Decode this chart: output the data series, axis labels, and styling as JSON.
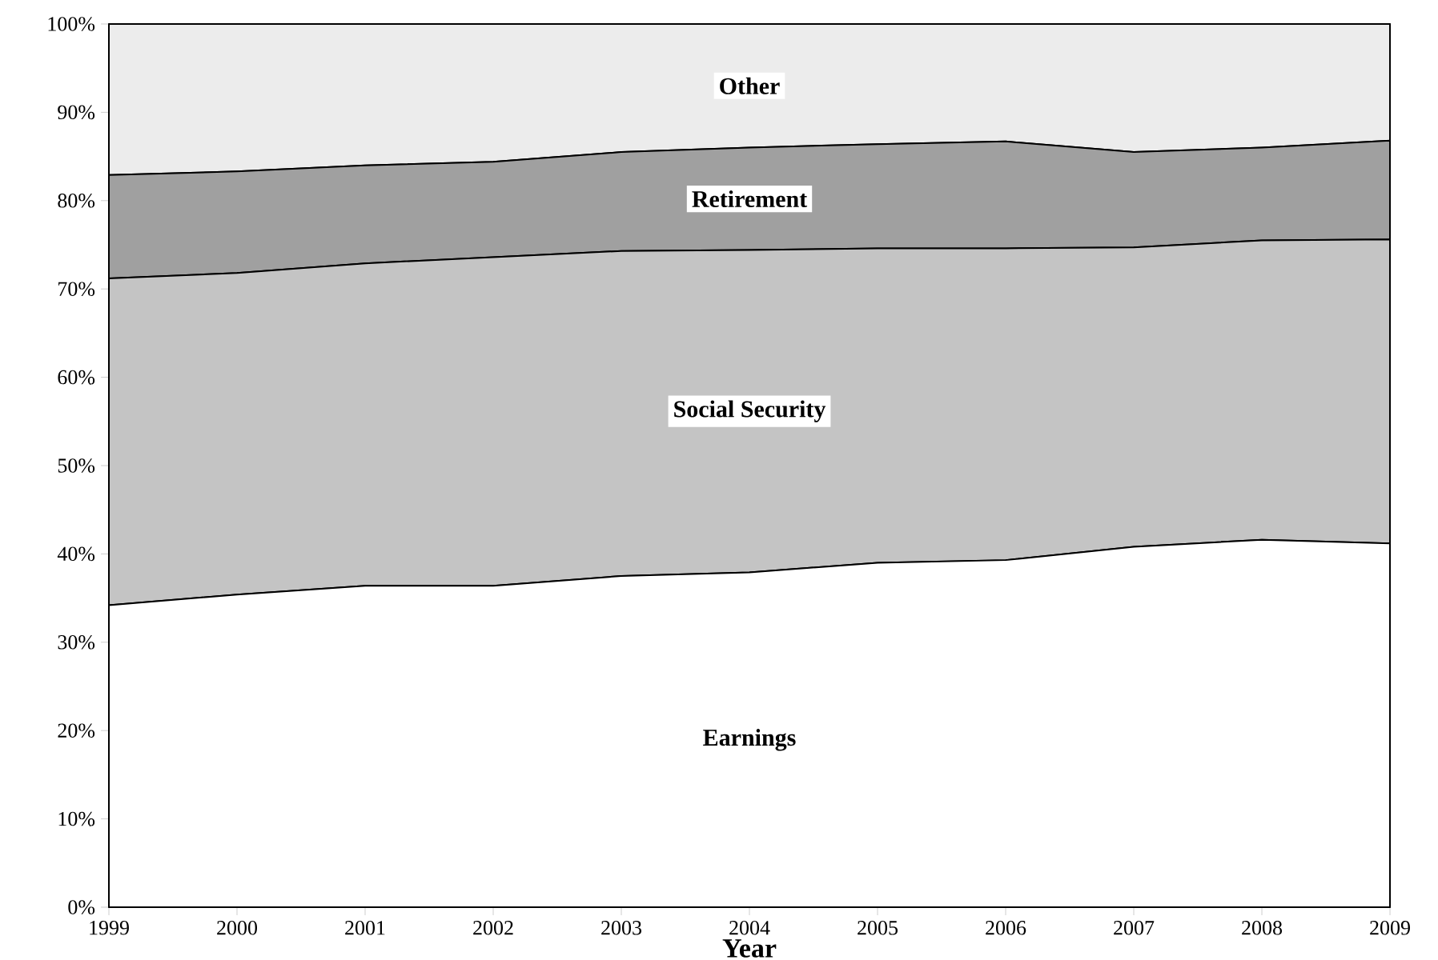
{
  "chart_data": {
    "type": "area",
    "stacked": true,
    "xlabel": "Year",
    "x": [
      1999,
      2000,
      2001,
      2002,
      2003,
      2004,
      2005,
      2006,
      2007,
      2008,
      2009
    ],
    "series": [
      {
        "name": "Earnings",
        "color": "#ffffff",
        "values": [
          34.2,
          35.4,
          36.4,
          36.4,
          37.5,
          37.9,
          39.0,
          39.3,
          40.8,
          41.6,
          41.2
        ]
      },
      {
        "name": "Social Security",
        "color": "#c4c4c4",
        "values": [
          37.0,
          36.4,
          36.5,
          37.2,
          36.8,
          36.5,
          35.6,
          35.3,
          33.9,
          33.9,
          34.4
        ]
      },
      {
        "name": "Retirement",
        "color": "#a0a0a0",
        "values": [
          11.7,
          11.5,
          11.1,
          10.8,
          11.2,
          11.6,
          11.8,
          12.1,
          10.8,
          10.5,
          11.2
        ]
      },
      {
        "name": "Other",
        "color": "#ececec",
        "values": [
          17.1,
          16.7,
          16.0,
          15.6,
          14.5,
          14.0,
          13.6,
          13.3,
          14.5,
          14.0,
          13.2
        ]
      }
    ],
    "xlim": [
      1999,
      2009
    ],
    "xticks": [
      1999,
      2000,
      2001,
      2002,
      2003,
      2004,
      2005,
      2006,
      2007,
      2008,
      2009
    ],
    "ylim": [
      0,
      100
    ],
    "yticks": [
      {
        "value": 0,
        "label": "0%"
      },
      {
        "value": 10,
        "label": "10%"
      },
      {
        "value": 20,
        "label": "20%"
      },
      {
        "value": 30,
        "label": "30%"
      },
      {
        "value": 40,
        "label": "40%"
      },
      {
        "value": 50,
        "label": "50%"
      },
      {
        "value": 60,
        "label": "60%"
      },
      {
        "value": 70,
        "label": "70%"
      },
      {
        "value": 80,
        "label": "80%"
      },
      {
        "value": 90,
        "label": "90%"
      },
      {
        "value": 100,
        "label": "100%"
      }
    ]
  }
}
